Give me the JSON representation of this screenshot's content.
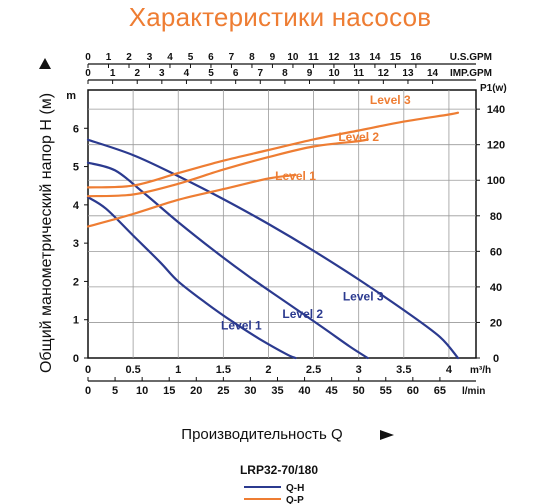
{
  "title": "Характеристики насосов",
  "chart_data": {
    "type": "line",
    "model": "LRP32-70/180",
    "ylabel": "Общий манометрический напор Н (м)",
    "xlabel": "Производительность Q",
    "head_axis": {
      "unit": "m",
      "ticks": [
        "0",
        "1",
        "2",
        "3",
        "4",
        "5",
        "6"
      ],
      "ylim": [
        0,
        7
      ]
    },
    "power_axis": {
      "unit": "P1(w)",
      "ticks": [
        "0",
        "20",
        "40",
        "60",
        "80",
        "100",
        "120",
        "140"
      ],
      "ylim": [
        0,
        140
      ]
    },
    "flow_m3h_axis": {
      "unit": "m³/h",
      "ticks": [
        "0",
        "0.5",
        "1",
        "1.5",
        "2",
        "2.5",
        "3",
        "3.5",
        "4"
      ],
      "xlim": [
        0,
        4.3
      ]
    },
    "flow_lmin_axis": {
      "unit": "l/min",
      "ticks": [
        "0",
        "5",
        "10",
        "15",
        "20",
        "25",
        "30",
        "35",
        "40",
        "45",
        "50",
        "55",
        "60",
        "65"
      ]
    },
    "us_gpm_axis": {
      "unit": "U.S.GPM",
      "ticks": [
        "0",
        "1",
        "2",
        "3",
        "4",
        "5",
        "6",
        "7",
        "8",
        "9",
        "10",
        "11",
        "12",
        "13",
        "14",
        "15",
        "16"
      ]
    },
    "imp_gpm_axis": {
      "unit": "IMP.GPM",
      "ticks": [
        "0",
        "1",
        "2",
        "3",
        "4",
        "5",
        "6",
        "7",
        "8",
        "9",
        "10",
        "11",
        "12",
        "13",
        "14"
      ]
    },
    "series": [
      {
        "name": "Level 1",
        "kind": "Q-H",
        "axis": "head",
        "color": "#2b3a8f",
        "x": [
          0,
          0.2,
          0.5,
          0.8,
          1.0,
          1.3,
          1.6,
          1.9,
          2.2,
          2.3
        ],
        "y": [
          4.2,
          3.9,
          3.2,
          2.5,
          2.0,
          1.45,
          0.95,
          0.5,
          0.1,
          0.0
        ]
      },
      {
        "name": "Level 2",
        "kind": "Q-H",
        "axis": "head",
        "color": "#2b3a8f",
        "x": [
          0,
          0.3,
          0.6,
          1.0,
          1.4,
          1.8,
          2.2,
          2.6,
          2.9,
          3.1
        ],
        "y": [
          5.1,
          4.9,
          4.35,
          3.55,
          2.8,
          2.1,
          1.45,
          0.8,
          0.3,
          0.0
        ]
      },
      {
        "name": "Level 3",
        "kind": "Q-H",
        "axis": "head",
        "color": "#2b3a8f",
        "x": [
          0,
          0.5,
          1.0,
          1.5,
          2.0,
          2.5,
          3.0,
          3.5,
          3.9,
          4.1
        ],
        "y": [
          5.7,
          5.3,
          4.75,
          4.15,
          3.5,
          2.8,
          2.05,
          1.25,
          0.55,
          0.0
        ]
      },
      {
        "name": "Level 1",
        "kind": "Q-P",
        "axis": "power",
        "color": "#ee7d33",
        "x": [
          0,
          0.5,
          1.0,
          1.5,
          2.0,
          2.3
        ],
        "y": [
          74,
          81,
          89,
          95,
          101,
          103
        ]
      },
      {
        "name": "Level 2",
        "kind": "Q-P",
        "axis": "power",
        "color": "#ee7d33",
        "x": [
          0,
          0.5,
          1.0,
          1.5,
          2.0,
          2.5,
          3.0,
          3.1
        ],
        "y": [
          91,
          92,
          98,
          106,
          113,
          119,
          122,
          123
        ]
      },
      {
        "name": "Level 3",
        "kind": "Q-P",
        "axis": "power",
        "color": "#ee7d33",
        "x": [
          0,
          0.5,
          1.0,
          1.5,
          2.0,
          2.5,
          3.0,
          3.5,
          4.0,
          4.1
        ],
        "y": [
          96,
          97,
          104,
          111,
          117,
          123,
          128,
          133,
          137,
          138
        ]
      }
    ],
    "curve_labels": [
      {
        "text": "Level 3",
        "x": 3.35,
        "y": 143,
        "axis": "power",
        "color": "#ee7d33"
      },
      {
        "text": "Level 2",
        "x": 3.0,
        "y": 122,
        "axis": "power",
        "color": "#ee7d33"
      },
      {
        "text": "Level 1",
        "x": 2.3,
        "y": 100,
        "axis": "power",
        "color": "#ee7d33"
      },
      {
        "text": "Level 3",
        "x": 3.05,
        "y": 1.5,
        "axis": "head",
        "color": "#2b3a8f"
      },
      {
        "text": "Level 2",
        "x": 2.38,
        "y": 1.05,
        "axis": "head",
        "color": "#2b3a8f"
      },
      {
        "text": "Level 1",
        "x": 1.7,
        "y": 0.75,
        "axis": "head",
        "color": "#2b3a8f"
      }
    ],
    "legend": [
      {
        "label": "Q-H",
        "color": "#2b3a8f"
      },
      {
        "label": "Q-P",
        "color": "#ee7d33"
      }
    ],
    "grid": true
  }
}
